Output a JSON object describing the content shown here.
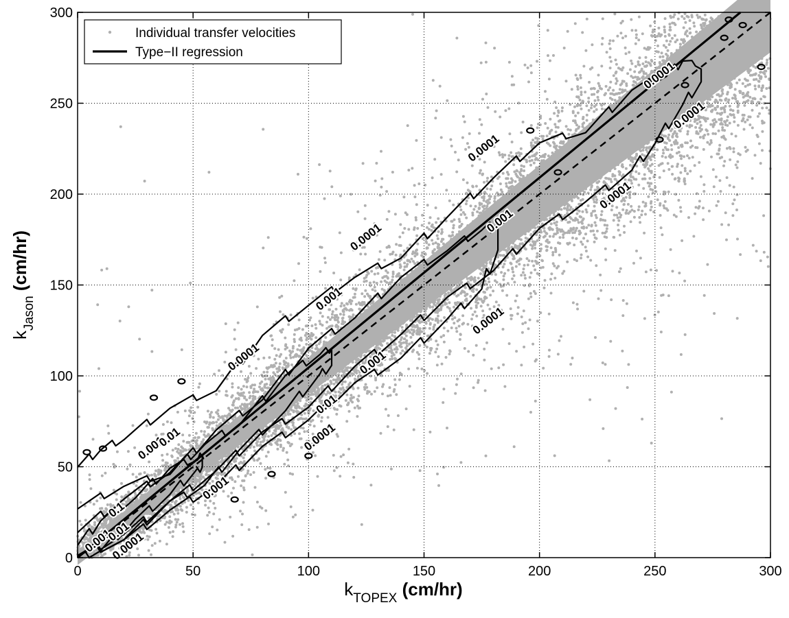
{
  "chart_data": {
    "type": "scatter",
    "xlabel": {
      "main": "k",
      "sub": "TOPEX",
      "unit": " (cm/hr)"
    },
    "ylabel": {
      "main": "k",
      "sub": "Jason",
      "unit": " (cm/hr)"
    },
    "xlim": [
      0,
      300
    ],
    "ylim": [
      0,
      300
    ],
    "xticks": [
      "0",
      "50",
      "100",
      "150",
      "200",
      "250",
      "300"
    ],
    "yticks": [
      "0",
      "50",
      "100",
      "150",
      "200",
      "250",
      "300"
    ],
    "grid": true,
    "legend_position": "top-left",
    "legend": [
      {
        "label": "Individual transfer velocities",
        "marker": "point",
        "color": "#b0b0b0"
      },
      {
        "label": "Type−II regression",
        "marker": "solid-line",
        "color": "#000000"
      }
    ],
    "series": [
      {
        "name": "Individual transfer velocities",
        "kind": "points",
        "color": "#b0b0b0",
        "relation": "k_Jason ≈ k_TOPEX",
        "x_range": [
          0,
          300
        ],
        "y_range": [
          0,
          300
        ]
      },
      {
        "name": "Type−II regression",
        "kind": "line",
        "style": "solid",
        "color": "#000000",
        "x": [
          0,
          287
        ],
        "y": [
          0,
          300
        ]
      },
      {
        "kind": "line",
        "style": "dashed",
        "color": "#000000",
        "x": [
          0,
          300
        ],
        "y": [
          0,
          300
        ]
      }
    ],
    "contours": [
      {
        "level": "0.0001",
        "upper": {
          "x": [
            0,
            10,
            20,
            40,
            60,
            80,
            100,
            120,
            140,
            160,
            180,
            200,
            220,
            240,
            255,
            262,
            270
          ],
          "y": [
            51,
            57,
            66,
            80,
            93,
            120,
            140,
            152,
            166,
            185,
            210,
            226,
            235,
            255,
            266,
            271,
            270
          ]
        },
        "lower": {
          "x": [
            0,
            20,
            40,
            60,
            80,
            100,
            120,
            140,
            160,
            180,
            200,
            220,
            240,
            250,
            262,
            270
          ],
          "y": [
            0,
            15,
            30,
            50,
            68,
            85,
            104,
            125,
            142,
            160,
            180,
            198,
            212,
            230,
            248,
            264
          ]
        }
      },
      {
        "level": "0.001",
        "upper": {
          "x": [
            0,
            20,
            40,
            60,
            80,
            100,
            120,
            140,
            160,
            175,
            182
          ],
          "y": [
            28,
            37,
            47,
            68,
            88,
            113,
            133,
            152,
            170,
            178,
            185
          ]
        },
        "lower": {
          "x": [
            0,
            20,
            40,
            60,
            80,
            100,
            120,
            140,
            160,
            175,
            182
          ],
          "y": [
            0,
            12,
            25,
            42,
            60,
            78,
            95,
            112,
            130,
            150,
            168
          ]
        }
      },
      {
        "level": "0.01",
        "upper": {
          "x": [
            0,
            20,
            40,
            55,
            70,
            90,
            105,
            110
          ],
          "y": [
            15,
            30,
            48,
            60,
            74,
            98,
            113,
            112
          ]
        },
        "lower": {
          "x": [
            0,
            20,
            40,
            55,
            70,
            90,
            105,
            110
          ],
          "y": [
            0,
            12,
            30,
            42,
            58,
            83,
            100,
            108
          ]
        }
      },
      {
        "level": "0.1",
        "upper": {
          "x": [
            0,
            10,
            25,
            40,
            52,
            54
          ],
          "y": [
            8,
            18,
            34,
            47,
            55,
            54
          ]
        },
        "lower": {
          "x": [
            0,
            10,
            25,
            40,
            52,
            54
          ],
          "y": [
            0,
            6,
            20,
            37,
            48,
            52
          ]
        }
      }
    ],
    "contour_labels": [
      {
        "text": "0.0001",
        "x": 22,
        "y": 6
      },
      {
        "text": "0.001",
        "x": 9,
        "y": 9
      },
      {
        "text": "0.01",
        "x": 18,
        "y": 14
      },
      {
        "text": "0.1",
        "x": 17,
        "y": 26
      },
      {
        "text": "0.001",
        "x": 32,
        "y": 60
      },
      {
        "text": "0.01",
        "x": 40,
        "y": 66
      },
      {
        "text": "0.001",
        "x": 60,
        "y": 38
      },
      {
        "text": "0.0001",
        "x": 72,
        "y": 110
      },
      {
        "text": "0.01",
        "x": 108,
        "y": 84
      },
      {
        "text": "0.001",
        "x": 128,
        "y": 107
      },
      {
        "text": "0.001",
        "x": 109,
        "y": 142
      },
      {
        "text": "0.0001",
        "x": 125,
        "y": 176
      },
      {
        "text": "0.0001",
        "x": 105,
        "y": 66
      },
      {
        "text": "0.0001",
        "x": 178,
        "y": 130
      },
      {
        "text": "0.0001",
        "x": 176,
        "y": 225
      },
      {
        "text": "0.001",
        "x": 183,
        "y": 185
      },
      {
        "text": "0.0001",
        "x": 233,
        "y": 199
      },
      {
        "text": "0.0001",
        "x": 252,
        "y": 265
      },
      {
        "text": "0.0001",
        "x": 265,
        "y": 243
      }
    ]
  }
}
